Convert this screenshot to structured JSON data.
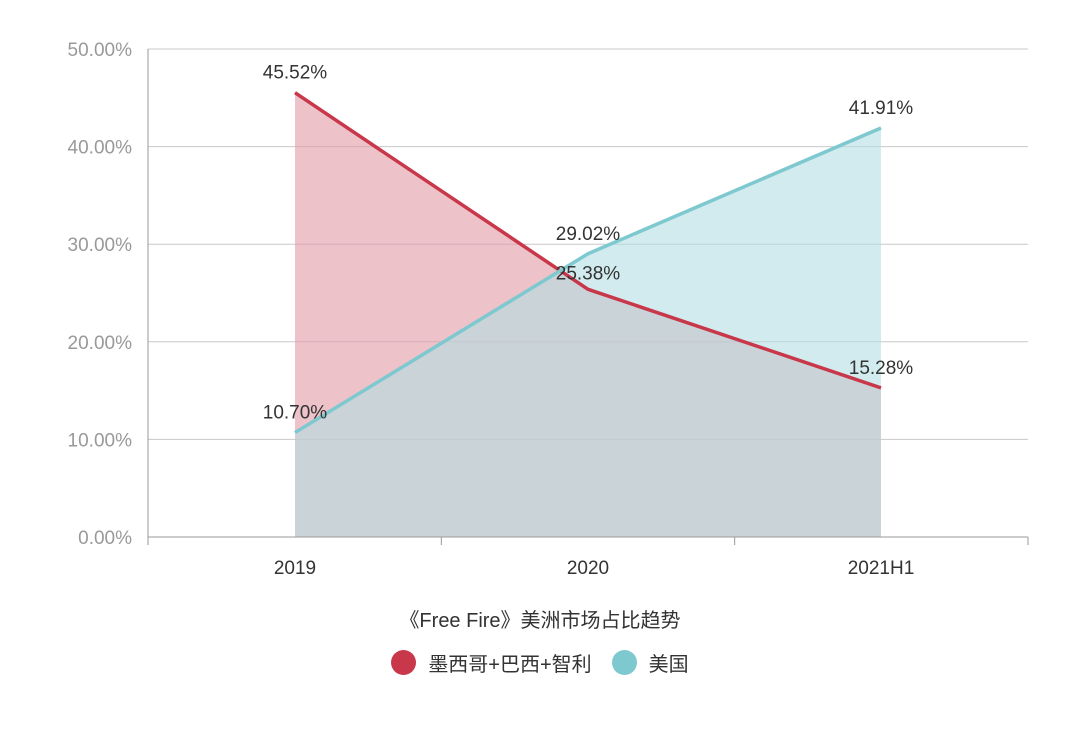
{
  "chart_data": {
    "type": "area",
    "title": "《Free Fire》美洲市场占比趋势",
    "categories": [
      "2019",
      "2020",
      "2021H1"
    ],
    "series": [
      {
        "name": "墨西哥+巴西+智利",
        "values": [
          45.52,
          25.38,
          15.28
        ],
        "labels": [
          "45.52%",
          "25.38%",
          "15.28%"
        ],
        "color": "#c8374a",
        "fill": "#e39aa5"
      },
      {
        "name": "美国",
        "values": [
          10.7,
          29.02,
          41.91
        ],
        "labels": [
          "10.70%",
          "29.02%",
          "41.91%"
        ],
        "color": "#7ec8cf",
        "fill": "#b3dee3"
      }
    ],
    "y_ticks": [
      "0.00%",
      "10.00%",
      "20.00%",
      "30.00%",
      "40.00%",
      "50.00%"
    ],
    "ylim": [
      0,
      50
    ],
    "grid": true,
    "legend": "bottom-center"
  }
}
